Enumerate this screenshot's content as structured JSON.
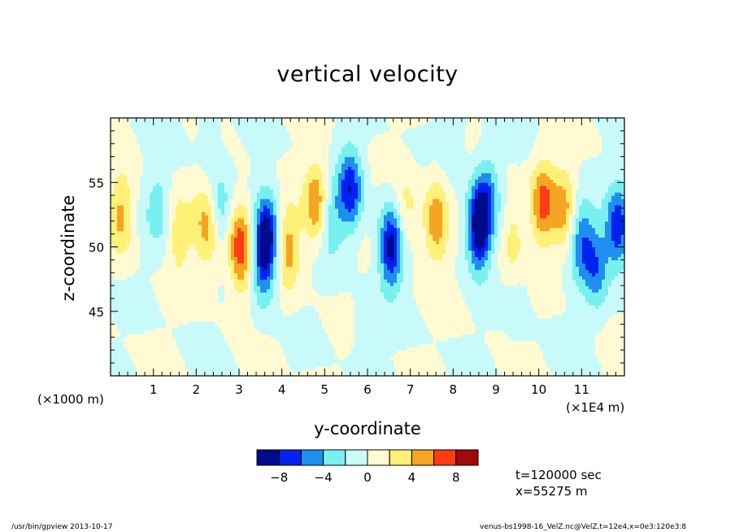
{
  "chart_data": {
    "type": "heatmap",
    "title": "vertical velocity",
    "xlabel": "y-coordinate",
    "ylabel": "z-coordinate",
    "x_unit_left": "(×1000 m)",
    "x_unit_right": "(×1E4 m)",
    "xlim": [
      0,
      12
    ],
    "ylim": [
      40,
      60
    ],
    "x_ticks": [
      1,
      2,
      3,
      4,
      5,
      6,
      7,
      8,
      9,
      10,
      11
    ],
    "y_ticks": [
      45,
      50,
      55
    ],
    "grid": false,
    "colorbar": {
      "levels": [
        -10,
        -8,
        -6,
        -4,
        -2,
        0,
        2,
        4,
        6,
        8,
        10
      ],
      "tick_labels": [
        "−8",
        "−4",
        "0",
        "4",
        "8"
      ],
      "tick_values": [
        -8,
        -4,
        0,
        4,
        8
      ],
      "colors": [
        "#000a8c",
        "#0022f0",
        "#1e8ef0",
        "#78f0f0",
        "#c8fafa",
        "#fffad2",
        "#fff078",
        "#f5a523",
        "#ff3c14",
        "#a00a0a"
      ]
    },
    "features": [
      {
        "x": 0.25,
        "z": 52.5,
        "w": 4.5
      },
      {
        "x": 1.1,
        "z": 53.0,
        "w": -3.0
      },
      {
        "x": 1.6,
        "z": 51.0,
        "w": 3.2
      },
      {
        "x": 2.2,
        "z": 52.0,
        "w": 3.5
      },
      {
        "x": 2.4,
        "z": 50.8,
        "w": 2.6
      },
      {
        "x": 2.55,
        "z": 52.5,
        "w": -4.2
      },
      {
        "x": 3.0,
        "z": 50.5,
        "w": 5.5
      },
      {
        "x": 3.1,
        "z": 49.0,
        "w": 2.8
      },
      {
        "x": 3.65,
        "z": 51.0,
        "w": -8.5
      },
      {
        "x": 3.55,
        "z": 48.5,
        "w": -5.0
      },
      {
        "x": 4.15,
        "z": 50.0,
        "w": 5.0
      },
      {
        "x": 4.8,
        "z": 53.5,
        "w": 6.0
      },
      {
        "x": 5.6,
        "z": 54.5,
        "w": -7.5
      },
      {
        "x": 5.15,
        "z": 52.0,
        "w": -3.5
      },
      {
        "x": 6.55,
        "z": 50.0,
        "w": -9.0
      },
      {
        "x": 6.9,
        "z": 52.8,
        "w": 2.8
      },
      {
        "x": 7.6,
        "z": 52.0,
        "w": 5.5
      },
      {
        "x": 8.6,
        "z": 51.5,
        "w": -10.0
      },
      {
        "x": 8.8,
        "z": 54.0,
        "w": -4.5
      },
      {
        "x": 9.4,
        "z": 50.5,
        "w": 3.0
      },
      {
        "x": 10.1,
        "z": 53.5,
        "w": 6.5
      },
      {
        "x": 10.6,
        "z": 53.0,
        "w": 4.5
      },
      {
        "x": 11.0,
        "z": 50.5,
        "w": -5.5
      },
      {
        "x": 11.35,
        "z": 48.5,
        "w": -5.0
      },
      {
        "x": 11.85,
        "z": 51.5,
        "w": -7.5
      },
      {
        "x": 6.0,
        "z": 43.0,
        "w": -1.5
      },
      {
        "x": 9.5,
        "z": 46.0,
        "w": -1.2
      },
      {
        "x": 2.3,
        "z": 58.0,
        "w": -1.2
      },
      {
        "x": 8.0,
        "z": 58.0,
        "w": -1.0
      }
    ],
    "time_label": "t=120000 sec",
    "position_label": "x=55275 m"
  },
  "footer": {
    "left": "/usr/bin/gpview  2013-10-17",
    "right": "venus-bs1998-16_VelZ.nc@VelZ,t=12e4,x=0e3:120e3:8"
  }
}
